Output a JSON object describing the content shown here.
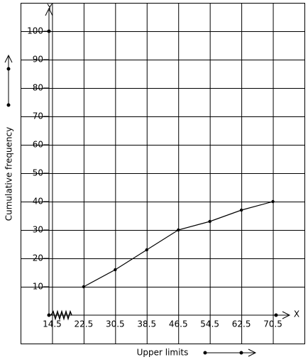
{
  "chart_data": {
    "type": "line",
    "x_label": "Upper limits",
    "y_label": "Cumulative frequency",
    "x_axis_name": "X",
    "y_axis_name": "Y",
    "x": [
      22.5,
      30.5,
      38.5,
      46.5,
      54.5,
      62.5,
      70.5
    ],
    "values": [
      10,
      16,
      23,
      30,
      33,
      37,
      40
    ],
    "color": "#000000",
    "xlim": [
      6.5,
      78.5
    ],
    "xticks": [
      14.5,
      22.5,
      30.5,
      38.5,
      46.5,
      54.5,
      62.5,
      70.5
    ],
    "ylim": [
      -10,
      110
    ],
    "yticks": [
      10,
      20,
      30,
      40,
      50,
      60,
      70,
      80,
      90,
      100
    ],
    "grid": true
  }
}
